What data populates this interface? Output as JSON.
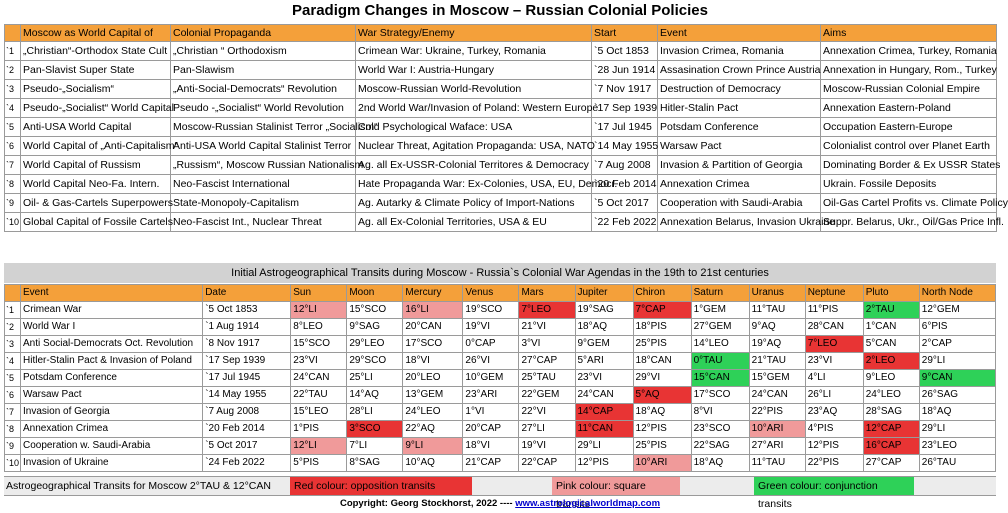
{
  "title": "Paradigm Changes in Moscow – Russian  Colonial Policies",
  "colonial_table": {
    "headers": [
      "Moscow as World Capital of",
      "Colonial Propaganda",
      "War Strategy/Enemy",
      "Start",
      "Event",
      "Aims"
    ],
    "rows": [
      [
        "`1",
        "„Christian“-Orthodox State Cult",
        "„Christian “ Orthodoxism",
        "Crimean War: Ukraine, Turkey, Romania",
        "`5 Oct 1853",
        "Invasion Crimea, Romania",
        "Annexation Crimea, Turkey, Romania"
      ],
      [
        "`2",
        "Pan-Slavist Super State",
        "Pan-Slawism",
        "World War I: Austria-Hungary",
        "`28 Jun 1914",
        "Assasination Crown Prince Austria",
        "Annexation in Hungary, Rom., Turkey"
      ],
      [
        "`3",
        "Pseudo-„Socialism“",
        "„Anti-Social-Democrats“ Revolution",
        "Moscow-Russian World-Revolution",
        "`7 Nov 1917",
        "Destruction of Democracy",
        "Moscow-Russian Colonial Empire"
      ],
      [
        "`4",
        "Pseudo-„Socialist“ World Capital",
        "Pseudo -„Socialist“ World Revolution",
        "2nd World War/Invasion of Poland: Western Europe",
        "`17 Sep 1939",
        "Hitler-Stalin Pact",
        "Annexation Eastern-Poland"
      ],
      [
        "`5",
        "Anti-USA World Capital",
        "Moscow-Russian Stalinist Terror „Socialism“",
        "Cold Psychological Waface: USA",
        "`17 Jul 1945",
        "Potsdam Conference",
        "Occupation Eastern-Europe"
      ],
      [
        "`6",
        "World Capital of „Anti-Capitalism“",
        "Anti-USA World Capital Stalinist Terror",
        "Nuclear Threat, Agitation Propaganda: USA, NATO",
        "`14 May 1955",
        "Warsaw Pact",
        "Colonialist control over Planet Earth"
      ],
      [
        "`7",
        "World Capital of Russism",
        "„Russism“, Moscow Russian Nationalism",
        "Ag. all Ex-USSR-Colonial Territores & Democracy",
        "`7 Aug 2008",
        "Invasion & Partition of Georgia",
        "Dominating Border & Ex USSR States"
      ],
      [
        "`8",
        "World Capital Neo-Fa. Intern.",
        "Neo-Fascist International",
        "Hate Propaganda War: Ex-Colonies, USA, EU, Democr.",
        "`20 Feb 2014",
        "Annexation Crimea",
        "Ukrain. Fossile Deposits"
      ],
      [
        "`9",
        "Oil- & Gas-Cartels Superpowers",
        "State-Monopoly-Capitalism",
        "Ag. Autarky & Climate Policy of Import-Nations",
        "`5 Oct 2017",
        "Cooperation with Saudi-Arabia",
        "Oil-Gas Cartel Profits vs. Climate Policy"
      ],
      [
        "`10",
        "Global Capital of Fossile Cartels",
        "Neo-Fascist Int., Nuclear Threat",
        "Ag. all Ex-Colonial Territories, USA & EU",
        "`22 Feb 2022",
        "Annexation Belarus, Invasion Ukraine",
        "Suppr. Belarus, Ukr., Oil/Gas Price Infl."
      ]
    ]
  },
  "transit_title": "Initial Astrogeographical Transits during Moscow - Russia`s Colonial War Agendas in the 19th to 21st centuries",
  "transit_table": {
    "headers": [
      "Event",
      "Date",
      "Sun",
      "Moon",
      "Mercury",
      "Venus",
      "Mars",
      "Jupiter",
      "Chiron",
      "Saturn",
      "Uranus",
      "Neptune",
      "Pluto",
      "North Node"
    ],
    "rows": [
      {
        "num": "`1",
        "cells": [
          "Crimean War",
          "`5 Oct 1853",
          "12°LI",
          "15°SCO",
          "16°LI",
          "19°SCO",
          "7°LEO",
          "19°SAG",
          "7°CAP",
          "1°GEM",
          "11°TAU",
          "11°PIS",
          "2°TAU",
          "12°GEM"
        ],
        "colors": [
          "",
          "",
          "pink",
          "",
          "pink",
          "",
          "red",
          "",
          "red",
          "",
          "",
          "",
          "green",
          ""
        ]
      },
      {
        "num": "`2",
        "cells": [
          "World War I",
          "`1 Aug 1914",
          "8°LEO",
          "9°SAG",
          "20°CAN",
          "19°VI",
          "21°VI",
          "18°AQ",
          "18°PIS",
          "27°GEM",
          "9°AQ",
          "28°CAN",
          "1°CAN",
          "6°PIS"
        ],
        "colors": [
          "",
          "",
          "",
          "",
          "",
          "",
          "",
          "",
          "",
          "",
          "",
          "",
          "",
          ""
        ]
      },
      {
        "num": "`3",
        "cells": [
          "Anti Social-Democrats Oct. Revolution",
          "`8 Nov 1917",
          "15°SCO",
          "29°LEO",
          "17°SCO",
          "0°CAP",
          "3°VI",
          "9°GEM",
          "25°PIS",
          "14°LEO",
          "19°AQ",
          "7°LEO",
          "5°CAN",
          "2°CAP"
        ],
        "colors": [
          "",
          "",
          "",
          "",
          "",
          "",
          "",
          "",
          "",
          "",
          "",
          "red",
          "",
          ""
        ]
      },
      {
        "num": "`4",
        "cells": [
          "Hitler-Stalin Pact & Invasion of Poland",
          "`17 Sep 1939",
          "23°VI",
          "29°SCO",
          "18°VI",
          "26°VI",
          "27°CAP",
          "5°ARI",
          "18°CAN",
          "0°TAU",
          "21°TAU",
          "23°VI",
          "2°LEO",
          "29°LI"
        ],
        "colors": [
          "",
          "",
          "",
          "",
          "",
          "",
          "",
          "",
          "",
          "green",
          "",
          "",
          "red",
          ""
        ]
      },
      {
        "num": "`5",
        "cells": [
          "Potsdam Conference",
          "`17 Jul 1945",
          "24°CAN",
          "25°LI",
          "20°LEO",
          "10°GEM",
          "25°TAU",
          "23°VI",
          "29°VI",
          "15°CAN",
          "15°GEM",
          "4°LI",
          "9°LEO",
          "9°CAN"
        ],
        "colors": [
          "",
          "",
          "",
          "",
          "",
          "",
          "",
          "",
          "",
          "green",
          "",
          "",
          "",
          "green"
        ]
      },
      {
        "num": "`6",
        "cells": [
          "Warsaw Pact",
          "`14 May 1955",
          "22°TAU",
          "14°AQ",
          "13°GEM",
          "23°ARI",
          "22°GEM",
          "24°CAN",
          "5°AQ",
          "17°SCO",
          "24°CAN",
          "26°LI",
          "24°LEO",
          "26°SAG"
        ],
        "colors": [
          "",
          "",
          "",
          "",
          "",
          "",
          "",
          "",
          "red",
          "",
          "",
          "",
          "",
          ""
        ]
      },
      {
        "num": "`7",
        "cells": [
          "Invasion of Georgia",
          "`7 Aug 2008",
          "15°LEO",
          "28°LI",
          "24°LEO",
          "1°VI",
          "22°VI",
          "14°CAP",
          "18°AQ",
          "8°VI",
          "22°PIS",
          "23°AQ",
          "28°SAG",
          "18°AQ"
        ],
        "colors": [
          "",
          "",
          "",
          "",
          "",
          "",
          "",
          "red",
          "",
          "",
          "",
          "",
          "",
          ""
        ]
      },
      {
        "num": "`8",
        "cells": [
          "Annexation Crimea",
          "`20 Feb 2014",
          "1°PIS",
          "3°SCO",
          "22°AQ",
          "20°CAP",
          "27°LI",
          "11°CAN",
          "12°PIS",
          "23°SCO",
          "10°ARI",
          "4°PIS",
          "12°CAP",
          "29°LI"
        ],
        "colors": [
          "",
          "",
          "",
          "red",
          "",
          "",
          "",
          "red",
          "",
          "",
          "pink",
          "",
          "red",
          ""
        ]
      },
      {
        "num": "`9",
        "cells": [
          "Cooperation w. Saudi-Arabia",
          "`5 Oct 2017",
          "12°LI",
          "7°LI",
          "9°LI",
          "18°VI",
          "19°VI",
          "29°LI",
          "25°PIS",
          "22°SAG",
          "27°ARI",
          "12°PIS",
          "16°CAP",
          "23°LEO"
        ],
        "colors": [
          "",
          "",
          "pink",
          "",
          "pink",
          "",
          "",
          "",
          "",
          "",
          "",
          "",
          "red",
          ""
        ]
      },
      {
        "num": "`10",
        "cells": [
          "Invasion of Ukraine",
          "`24 Feb 2022",
          "5°PIS",
          "8°SAG",
          "10°AQ",
          "21°CAP",
          "22°CAP",
          "12°PIS",
          "10°ARI",
          "18°AQ",
          "11°TAU",
          "22°PIS",
          "27°CAP",
          "26°TAU"
        ],
        "colors": [
          "",
          "",
          "",
          "",
          "",
          "",
          "",
          "",
          "pink",
          "",
          "",
          "",
          "",
          ""
        ]
      }
    ]
  },
  "legend": {
    "moscow": "Astrogeographical Transits for Moscow  2°TAU & 12°CAN",
    "red": "Red colour:  opposition transits",
    "pink": "Pink colour:  square transits",
    "green": "Green colour:  conjunction transits"
  },
  "copyright": {
    "text": "Copyright: Georg Stockhorst, 2022  ---- ",
    "link": "www.astrologicalworldmap.com"
  },
  "colors": {
    "header": "#f4a03a",
    "red": "#e83434",
    "pink": "#f09a9a",
    "green": "#2ed158"
  }
}
